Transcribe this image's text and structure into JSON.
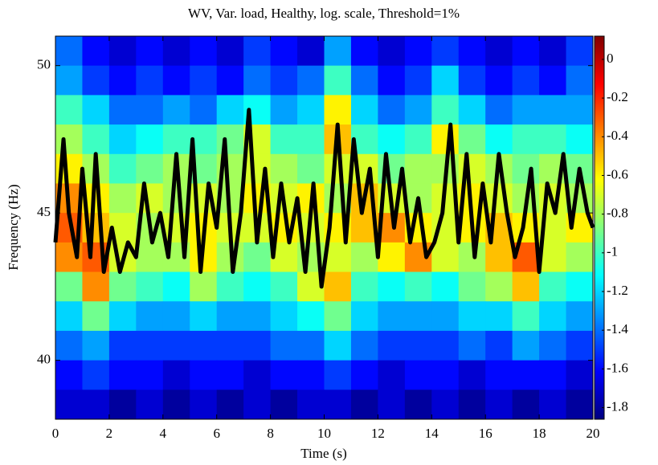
{
  "chart_data": {
    "type": "heatmap",
    "title": "WV, Var. load, Healthy, log. scale, Threshold=1%",
    "xlabel": "Time (s)",
    "ylabel": "Frequency (Hz)",
    "colormap": "jet",
    "x": [
      0.5,
      1.5,
      2.5,
      3.5,
      4.5,
      5.5,
      6.5,
      7.5,
      8.5,
      9.5,
      10.5,
      11.5,
      12.5,
      13.5,
      14.5,
      15.5,
      16.5,
      17.5,
      18.5,
      19.5
    ],
    "y": [
      50.5,
      49.5,
      48.5,
      47.5,
      46.5,
      45.5,
      44.5,
      43.5,
      42.5,
      41.5,
      40.5,
      39.5,
      38.5
    ],
    "z": [
      [
        -1.4,
        -1.6,
        -1.7,
        -1.6,
        -1.7,
        -1.6,
        -1.7,
        -1.5,
        -1.6,
        -1.7,
        -1.3,
        -1.6,
        -1.7,
        -1.6,
        -1.5,
        -1.6,
        -1.7,
        -1.6,
        -1.7,
        -1.5
      ],
      [
        -1.3,
        -1.5,
        -1.6,
        -1.5,
        -1.6,
        -1.5,
        -1.6,
        -1.4,
        -1.5,
        -1.4,
        -1.0,
        -1.4,
        -1.6,
        -1.5,
        -1.2,
        -1.5,
        -1.6,
        -1.5,
        -1.6,
        -1.4
      ],
      [
        -1.0,
        -1.2,
        -1.4,
        -1.4,
        -1.3,
        -1.4,
        -1.2,
        -1.1,
        -1.3,
        -1.2,
        -0.6,
        -1.2,
        -1.4,
        -1.3,
        -1.0,
        -1.2,
        -1.4,
        -1.3,
        -1.3,
        -1.3
      ],
      [
        -0.8,
        -1.0,
        -1.2,
        -1.1,
        -1.0,
        -1.0,
        -0.9,
        -0.7,
        -1.0,
        -1.0,
        -0.5,
        -1.0,
        -1.1,
        -1.0,
        -0.6,
        -0.9,
        -1.1,
        -1.0,
        -1.0,
        -1.1
      ],
      [
        -0.6,
        -0.8,
        -1.0,
        -0.9,
        -0.8,
        -0.9,
        -0.8,
        -0.7,
        -0.8,
        -0.9,
        -0.7,
        -0.7,
        -0.9,
        -0.8,
        -0.8,
        -0.7,
        -0.8,
        -0.9,
        -0.8,
        -0.9
      ],
      [
        -0.4,
        -0.6,
        -0.8,
        -0.7,
        -0.8,
        -0.7,
        -0.8,
        -0.6,
        -0.7,
        -0.6,
        -0.8,
        -0.5,
        -0.7,
        -0.8,
        -0.7,
        -0.6,
        -0.7,
        -0.8,
        -0.7,
        -0.8
      ],
      [
        -0.3,
        -0.5,
        -0.7,
        -0.8,
        -0.7,
        -0.6,
        -0.7,
        -0.7,
        -0.6,
        -0.7,
        -0.6,
        -0.5,
        -0.4,
        -0.6,
        -0.7,
        -0.6,
        -0.5,
        -0.6,
        -0.7,
        -0.6
      ],
      [
        -0.4,
        -0.3,
        -0.7,
        -0.8,
        -0.8,
        -0.6,
        -0.8,
        -0.9,
        -0.7,
        -0.8,
        -0.7,
        -0.8,
        -0.6,
        -0.4,
        -0.7,
        -0.8,
        -0.5,
        -0.3,
        -0.7,
        -0.8
      ],
      [
        -0.9,
        -0.4,
        -0.9,
        -1.0,
        -1.1,
        -0.8,
        -1.0,
        -1.1,
        -1.0,
        -0.7,
        -0.5,
        -1.0,
        -1.1,
        -1.0,
        -1.1,
        -0.9,
        -0.8,
        -0.5,
        -1.0,
        -1.1
      ],
      [
        -1.2,
        -0.9,
        -1.2,
        -1.3,
        -1.3,
        -1.2,
        -1.3,
        -1.3,
        -1.2,
        -1.1,
        -0.9,
        -1.2,
        -1.3,
        -1.3,
        -1.3,
        -1.2,
        -1.2,
        -1.0,
        -1.2,
        -1.3
      ],
      [
        -1.4,
        -1.3,
        -1.5,
        -1.5,
        -1.5,
        -1.5,
        -1.5,
        -1.5,
        -1.4,
        -1.4,
        -1.2,
        -1.4,
        -1.5,
        -1.5,
        -1.5,
        -1.4,
        -1.5,
        -1.3,
        -1.4,
        -1.5
      ],
      [
        -1.6,
        -1.5,
        -1.6,
        -1.6,
        -1.7,
        -1.6,
        -1.6,
        -1.7,
        -1.6,
        -1.6,
        -1.5,
        -1.6,
        -1.7,
        -1.6,
        -1.6,
        -1.7,
        -1.6,
        -1.6,
        -1.6,
        -1.7
      ],
      [
        -1.7,
        -1.7,
        -1.8,
        -1.7,
        -1.8,
        -1.7,
        -1.8,
        -1.7,
        -1.8,
        -1.7,
        -1.7,
        -1.8,
        -1.7,
        -1.8,
        -1.7,
        -1.8,
        -1.7,
        -1.8,
        -1.7,
        -1.8
      ]
    ],
    "xlim": [
      0,
      20
    ],
    "ylim": [
      38,
      51
    ],
    "xticks": [
      0,
      2,
      4,
      6,
      8,
      10,
      12,
      14,
      16,
      18,
      20
    ],
    "yticks": [
      40,
      45,
      50
    ],
    "clim": [
      -1.86,
      0.12
    ],
    "cticks": [
      0,
      -0.2,
      -0.4,
      -0.6,
      -0.8,
      -1,
      -1.2,
      -1.4,
      -1.6,
      -1.8
    ],
    "line": {
      "color": "#000000",
      "x": [
        0,
        0.3,
        0.5,
        0.8,
        1.0,
        1.3,
        1.5,
        1.8,
        2.1,
        2.4,
        2.7,
        3.0,
        3.3,
        3.6,
        3.9,
        4.2,
        4.5,
        4.8,
        5.1,
        5.4,
        5.7,
        6.0,
        6.3,
        6.6,
        6.9,
        7.2,
        7.5,
        7.8,
        8.1,
        8.4,
        8.7,
        9.0,
        9.3,
        9.6,
        9.9,
        10.2,
        10.5,
        10.8,
        11.1,
        11.4,
        11.7,
        12.0,
        12.3,
        12.6,
        12.9,
        13.2,
        13.5,
        13.8,
        14.1,
        14.4,
        14.7,
        15.0,
        15.3,
        15.6,
        15.9,
        16.2,
        16.5,
        16.8,
        17.1,
        17.4,
        17.7,
        18.0,
        18.3,
        18.6,
        18.9,
        19.2,
        19.5,
        19.8,
        20
      ],
      "y": [
        44,
        47.5,
        45,
        43.5,
        46.5,
        43.5,
        47,
        43,
        44.5,
        43,
        44,
        43.5,
        46,
        44,
        45,
        43.5,
        47,
        43.5,
        47.5,
        43,
        46,
        44.5,
        47.5,
        43,
        45,
        48.5,
        44,
        46.5,
        43.5,
        46,
        44,
        45.5,
        43,
        46,
        42.5,
        44.5,
        48,
        44,
        47.5,
        45,
        46.5,
        43.5,
        47,
        44.5,
        46.5,
        44,
        45.5,
        43.5,
        44,
        45,
        48,
        44,
        47,
        43.5,
        46,
        44,
        47,
        45,
        43.5,
        44.5,
        46.5,
        43,
        46,
        45,
        47,
        44.5,
        46.5,
        45,
        44.5
      ]
    }
  }
}
